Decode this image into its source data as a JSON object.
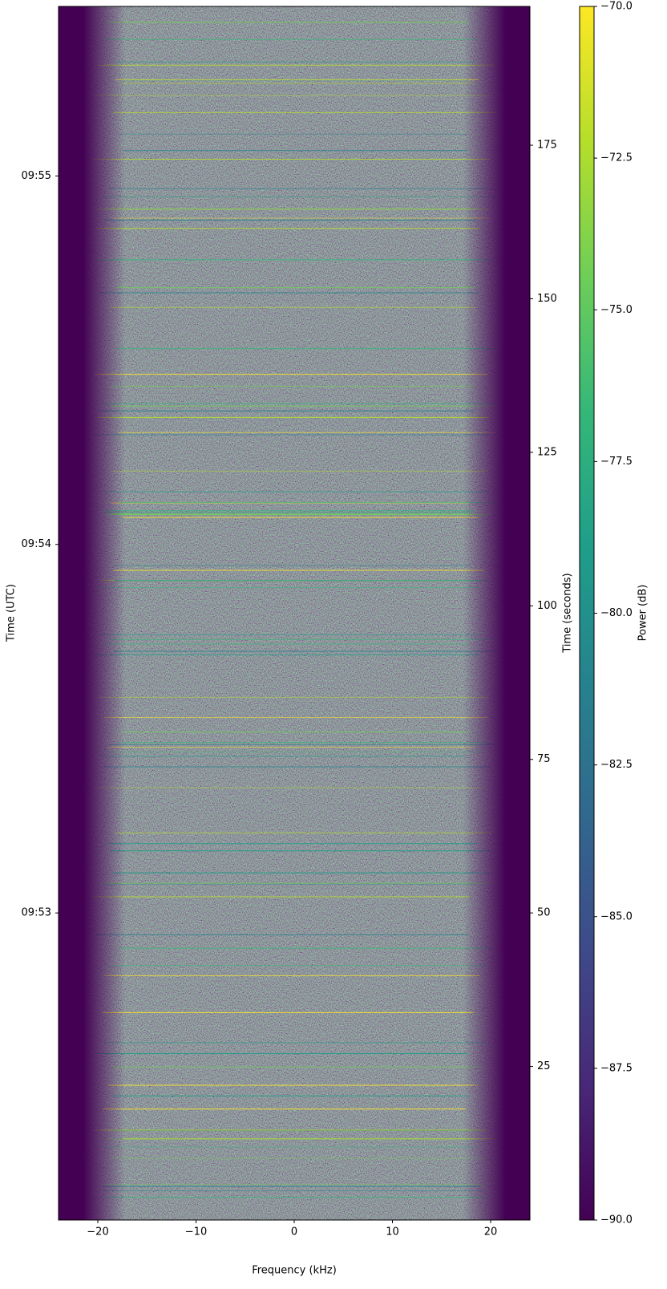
{
  "chart_data": {
    "type": "spectrogram",
    "colormap": "viridis",
    "xlabel": "Frequency (kHz)",
    "xlim": [
      -24,
      24
    ],
    "xticks": [
      {
        "value": -20,
        "label": "−20"
      },
      {
        "value": -10,
        "label": "−10"
      },
      0,
      10,
      20
    ],
    "ylabel": "Time (UTC)",
    "ylim": [
      0,
      197.6
    ],
    "yticks": [
      {
        "value": 50,
        "label": "09:53"
      },
      {
        "value": 110,
        "label": "09:54"
      },
      {
        "value": 170,
        "label": "09:55"
      }
    ],
    "y2label": "Time (seconds)",
    "y2lim": [
      0,
      197.6
    ],
    "y2ticks": [
      25,
      50,
      75,
      100,
      125,
      150,
      175
    ],
    "colorbar": {
      "label": "Power (dB)",
      "lim": [
        -90,
        -70
      ],
      "ticks": [
        {
          "value": -90,
          "label": "−90.0"
        },
        {
          "value": -87.5,
          "label": "−87.5"
        },
        {
          "value": -85,
          "label": "−85.0"
        },
        {
          "value": -82.5,
          "label": "−82.5"
        },
        {
          "value": -80,
          "label": "−80.0"
        },
        {
          "value": -77.5,
          "label": "−77.5"
        },
        {
          "value": -75,
          "label": "−75.0"
        },
        {
          "value": -72.5,
          "label": "−72.5"
        },
        {
          "value": -70,
          "label": "−70.0"
        }
      ]
    }
  }
}
